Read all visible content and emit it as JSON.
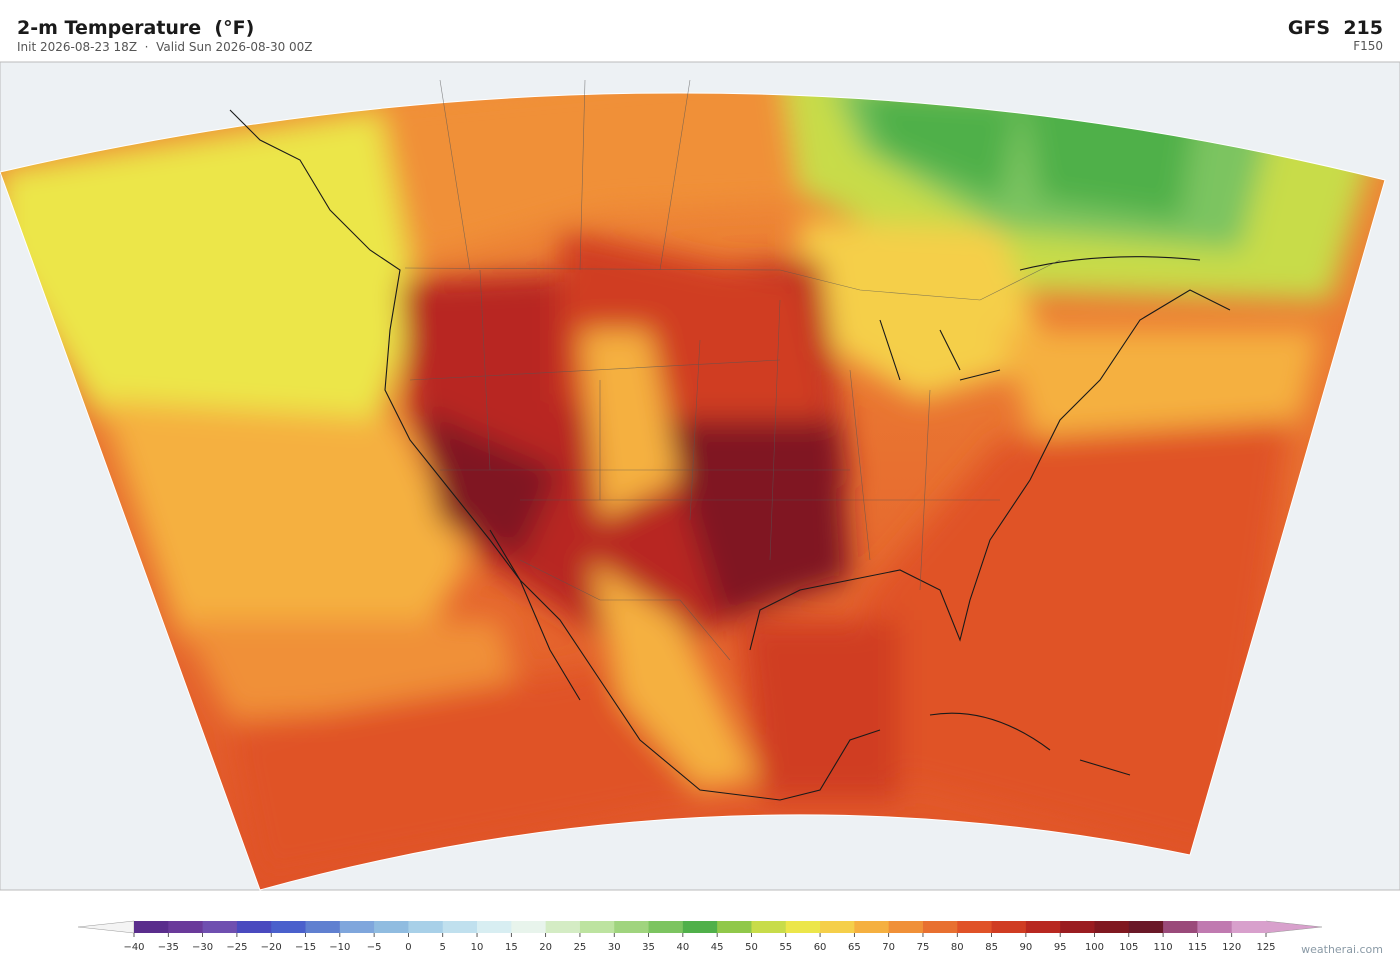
{
  "header": {
    "title": "2-m Temperature  (°F)",
    "subtitle": "Init 2026-08-23 18Z  ·  Valid Sun 2026-08-30 00Z",
    "model": "GFS  215",
    "forecast_hour": "F150"
  },
  "colorbar": {
    "ticks": [
      {
        "value": -40,
        "label": "−40"
      },
      {
        "value": -35,
        "label": "−35"
      },
      {
        "value": -30,
        "label": "−30"
      },
      {
        "value": -25,
        "label": "−25"
      },
      {
        "value": -20,
        "label": "−20"
      },
      {
        "value": -15,
        "label": "−15"
      },
      {
        "value": -10,
        "label": "−10"
      },
      {
        "value": -5,
        "label": "−5"
      },
      0,
      5,
      10,
      15,
      20,
      25,
      30,
      35,
      40,
      45,
      50,
      55,
      60,
      65,
      70,
      75,
      80,
      85,
      90,
      95,
      100,
      105,
      110,
      115,
      120,
      125
    ],
    "colors": [
      "#5a2d8c",
      "#6a3a9a",
      "#6f4fb0",
      "#4a4abf",
      "#4a60cc",
      "#6080d0",
      "#7fa6dc",
      "#90bce0",
      "#a8d0e8",
      "#c0e0ee",
      "#d8eef2",
      "#e8f4ec",
      "#d4ecc4",
      "#bde3a0",
      "#a0d47e",
      "#7cc460",
      "#50b04a",
      "#90c84a",
      "#c8dc4a",
      "#ece64a",
      "#f5cf4a",
      "#f5b040",
      "#f09038",
      "#e87030",
      "#e05228",
      "#d03c22",
      "#b82820",
      "#9a1c20",
      "#801820",
      "#6a1828",
      "#9a4a7a",
      "#c07ab0",
      "#d8a0cc"
    ],
    "under_color": "#f4f4f4",
    "over_color": "#d8a0cc"
  },
  "footer": {
    "credit": "weatherai.com"
  }
}
